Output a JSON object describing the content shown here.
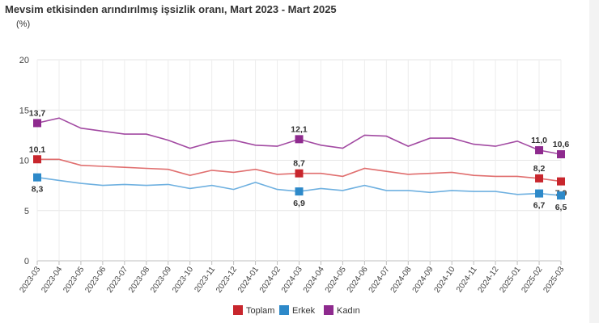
{
  "chart_data": {
    "type": "line",
    "title": "Mevsim etkisinden arındırılmış işsizlik oranı, Mart 2023 - Mart 2025",
    "ylabel": "(%)",
    "xlabel": "",
    "ylim": [
      0,
      20
    ],
    "yticks": [
      0,
      5,
      10,
      15,
      20
    ],
    "grid": true,
    "legend": "bottom",
    "categories": [
      "2023-03",
      "2023-04",
      "2023-05",
      "2023-06",
      "2023-07",
      "2023-08",
      "2023-09",
      "2023-10",
      "2023-11",
      "2023-12",
      "2024-01",
      "2024-02",
      "2024-03",
      "2024-04",
      "2024-05",
      "2024-06",
      "2024-07",
      "2024-08",
      "2024-09",
      "2024-10",
      "2024-11",
      "2024-12",
      "2025-01",
      "2025-02",
      "2025-03"
    ],
    "series": [
      {
        "name": "Toplam",
        "color": "#c8262d",
        "line_color": "#e06e6e",
        "values": [
          10.1,
          10.1,
          9.5,
          9.4,
          9.3,
          9.2,
          9.1,
          8.5,
          9.0,
          8.8,
          9.1,
          8.6,
          8.7,
          8.7,
          8.4,
          9.2,
          8.9,
          8.6,
          8.7,
          8.8,
          8.5,
          8.4,
          8.4,
          8.2,
          7.9
        ],
        "label_indices": [
          0,
          12,
          23,
          24
        ],
        "labels": [
          "10,1",
          "8,7",
          "8,2",
          "7,9"
        ],
        "label_pos": [
          "above",
          "above",
          "above",
          "below"
        ]
      },
      {
        "name": "Erkek",
        "color": "#2d89c9",
        "line_color": "#6eb0e0",
        "values": [
          8.3,
          8.0,
          7.7,
          7.5,
          7.6,
          7.5,
          7.6,
          7.2,
          7.5,
          7.1,
          7.8,
          7.1,
          6.9,
          7.2,
          7.0,
          7.5,
          7.0,
          7.0,
          6.8,
          7.0,
          6.9,
          6.9,
          6.6,
          6.7,
          6.5
        ],
        "label_indices": [
          0,
          12,
          23,
          24
        ],
        "labels": [
          "8,3",
          "6,9",
          "6,7",
          "6,5"
        ],
        "label_pos": [
          "below",
          "below",
          "below",
          "below"
        ]
      },
      {
        "name": "Kadın",
        "color": "#8e2a8e",
        "line_color": "#a24aa2",
        "values": [
          13.7,
          14.2,
          13.2,
          12.9,
          12.6,
          12.6,
          12.0,
          11.2,
          11.8,
          12.0,
          11.5,
          11.4,
          12.1,
          11.5,
          11.2,
          12.5,
          12.4,
          11.4,
          12.2,
          12.2,
          11.6,
          11.4,
          11.9,
          11.0,
          10.6
        ],
        "label_indices": [
          0,
          12,
          23,
          24
        ],
        "labels": [
          "13,7",
          "12,1",
          "11,0",
          "10,6"
        ],
        "label_pos": [
          "above",
          "above",
          "above",
          "above"
        ]
      }
    ]
  }
}
